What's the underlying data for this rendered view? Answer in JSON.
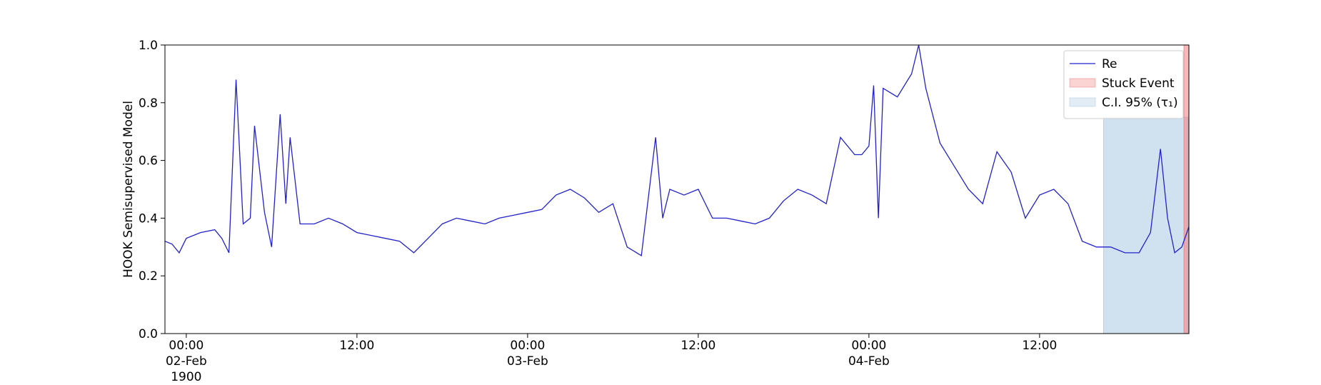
{
  "chart_data": {
    "type": "line",
    "ylabel": "HOOK Semisupervised Model",
    "xlim": [
      "1900-02-01T22:30",
      "1900-02-04T22:30"
    ],
    "ylim": [
      0,
      1
    ],
    "yticks": [
      {
        "value": 0,
        "label": "0.0"
      },
      {
        "value": 0.2,
        "label": "0.2"
      },
      {
        "value": 0.4,
        "label": "0.4"
      },
      {
        "value": 0.6,
        "label": "0.6"
      },
      {
        "value": 0.8,
        "label": "0.8"
      },
      {
        "value": 1,
        "label": "1.0"
      }
    ],
    "xticks": [
      {
        "value": "1900-02-02T00:00",
        "label": "00:00\n02-Feb\n1900"
      },
      {
        "value": "1900-02-02T12:00",
        "label": "12:00"
      },
      {
        "value": "1900-02-03T00:00",
        "label": "00:00\n03-Feb"
      },
      {
        "value": "1900-02-03T12:00",
        "label": "12:00"
      },
      {
        "value": "1900-02-04T00:00",
        "label": "00:00\n04-Feb"
      },
      {
        "value": "1900-02-04T12:00",
        "label": "12:00"
      }
    ],
    "legend": "upper right",
    "series": [
      {
        "name": "Re",
        "color": "#2222cc",
        "x": [
          "1900-02-01T22:30",
          "1900-02-01T23:00",
          "1900-02-01T23:30",
          "1900-02-02T00:00",
          "1900-02-02T01:00",
          "1900-02-02T02:00",
          "1900-02-02T02:30",
          "1900-02-02T03:00",
          "1900-02-02T03:30",
          "1900-02-02T04:00",
          "1900-02-02T04:30",
          "1900-02-02T04:48",
          "1900-02-02T05:30",
          "1900-02-02T06:00",
          "1900-02-02T06:36",
          "1900-02-02T07:00",
          "1900-02-02T07:18",
          "1900-02-02T08:00",
          "1900-02-02T09:00",
          "1900-02-02T10:00",
          "1900-02-02T11:00",
          "1900-02-02T12:00",
          "1900-02-02T13:00",
          "1900-02-02T14:00",
          "1900-02-02T15:00",
          "1900-02-02T16:00",
          "1900-02-02T17:00",
          "1900-02-02T18:00",
          "1900-02-02T19:00",
          "1900-02-02T20:00",
          "1900-02-02T21:00",
          "1900-02-02T22:00",
          "1900-02-02T23:00",
          "1900-02-03T00:00",
          "1900-02-03T01:00",
          "1900-02-03T02:00",
          "1900-02-03T03:00",
          "1900-02-03T04:00",
          "1900-02-03T05:00",
          "1900-02-03T06:00",
          "1900-02-03T07:00",
          "1900-02-03T08:00",
          "1900-02-03T09:00",
          "1900-02-03T09:30",
          "1900-02-03T10:00",
          "1900-02-03T11:00",
          "1900-02-03T12:00",
          "1900-02-03T13:00",
          "1900-02-03T14:00",
          "1900-02-03T15:00",
          "1900-02-03T16:00",
          "1900-02-03T17:00",
          "1900-02-03T18:00",
          "1900-02-03T19:00",
          "1900-02-03T20:00",
          "1900-02-03T21:00",
          "1900-02-03T22:00",
          "1900-02-03T23:00",
          "1900-02-03T23:30",
          "1900-02-04T00:00",
          "1900-02-04T00:20",
          "1900-02-04T00:40",
          "1900-02-04T01:00",
          "1900-02-04T02:00",
          "1900-02-04T03:00",
          "1900-02-04T03:30",
          "1900-02-04T04:00",
          "1900-02-04T05:00",
          "1900-02-04T06:00",
          "1900-02-04T07:00",
          "1900-02-04T08:00",
          "1900-02-04T09:00",
          "1900-02-04T10:00",
          "1900-02-04T11:00",
          "1900-02-04T12:00",
          "1900-02-04T13:00",
          "1900-02-04T14:00",
          "1900-02-04T15:00",
          "1900-02-04T16:00",
          "1900-02-04T17:00",
          "1900-02-04T18:00",
          "1900-02-04T19:00",
          "1900-02-04T19:48",
          "1900-02-04T20:30",
          "1900-02-04T21:00",
          "1900-02-04T21:30",
          "1900-02-04T22:00",
          "1900-02-04T22:30"
        ],
        "values": [
          0.32,
          0.31,
          0.28,
          0.33,
          0.35,
          0.36,
          0.33,
          0.28,
          0.88,
          0.38,
          0.4,
          0.72,
          0.42,
          0.3,
          0.76,
          0.45,
          0.68,
          0.38,
          0.38,
          0.4,
          0.38,
          0.35,
          0.34,
          0.33,
          0.32,
          0.28,
          0.33,
          0.38,
          0.4,
          0.39,
          0.38,
          0.4,
          0.41,
          0.42,
          0.43,
          0.48,
          0.5,
          0.47,
          0.42,
          0.45,
          0.3,
          0.27,
          0.68,
          0.4,
          0.5,
          0.48,
          0.5,
          0.4,
          0.4,
          0.39,
          0.38,
          0.4,
          0.46,
          0.5,
          0.48,
          0.45,
          0.68,
          0.62,
          0.62,
          0.65,
          0.86,
          0.4,
          0.85,
          0.82,
          0.9,
          1.0,
          0.85,
          0.66,
          0.58,
          0.5,
          0.45,
          0.63,
          0.56,
          0.4,
          0.48,
          0.5,
          0.45,
          0.32,
          0.3,
          0.3,
          0.28,
          0.28,
          0.35,
          0.64,
          0.4,
          0.28,
          0.3,
          0.37
        ]
      }
    ],
    "spans": [
      {
        "name": "Stuck Event",
        "color": "#f08080",
        "x": [
          "1900-02-04T22:09",
          "1900-02-04T22:30"
        ]
      },
      {
        "name": "C.I. 95% (τ₁)",
        "color": "#a9c9e3",
        "x": [
          "1900-02-04T16:30",
          "1900-02-04T22:27"
        ],
        "y": [
          0,
          0.75
        ]
      }
    ]
  }
}
